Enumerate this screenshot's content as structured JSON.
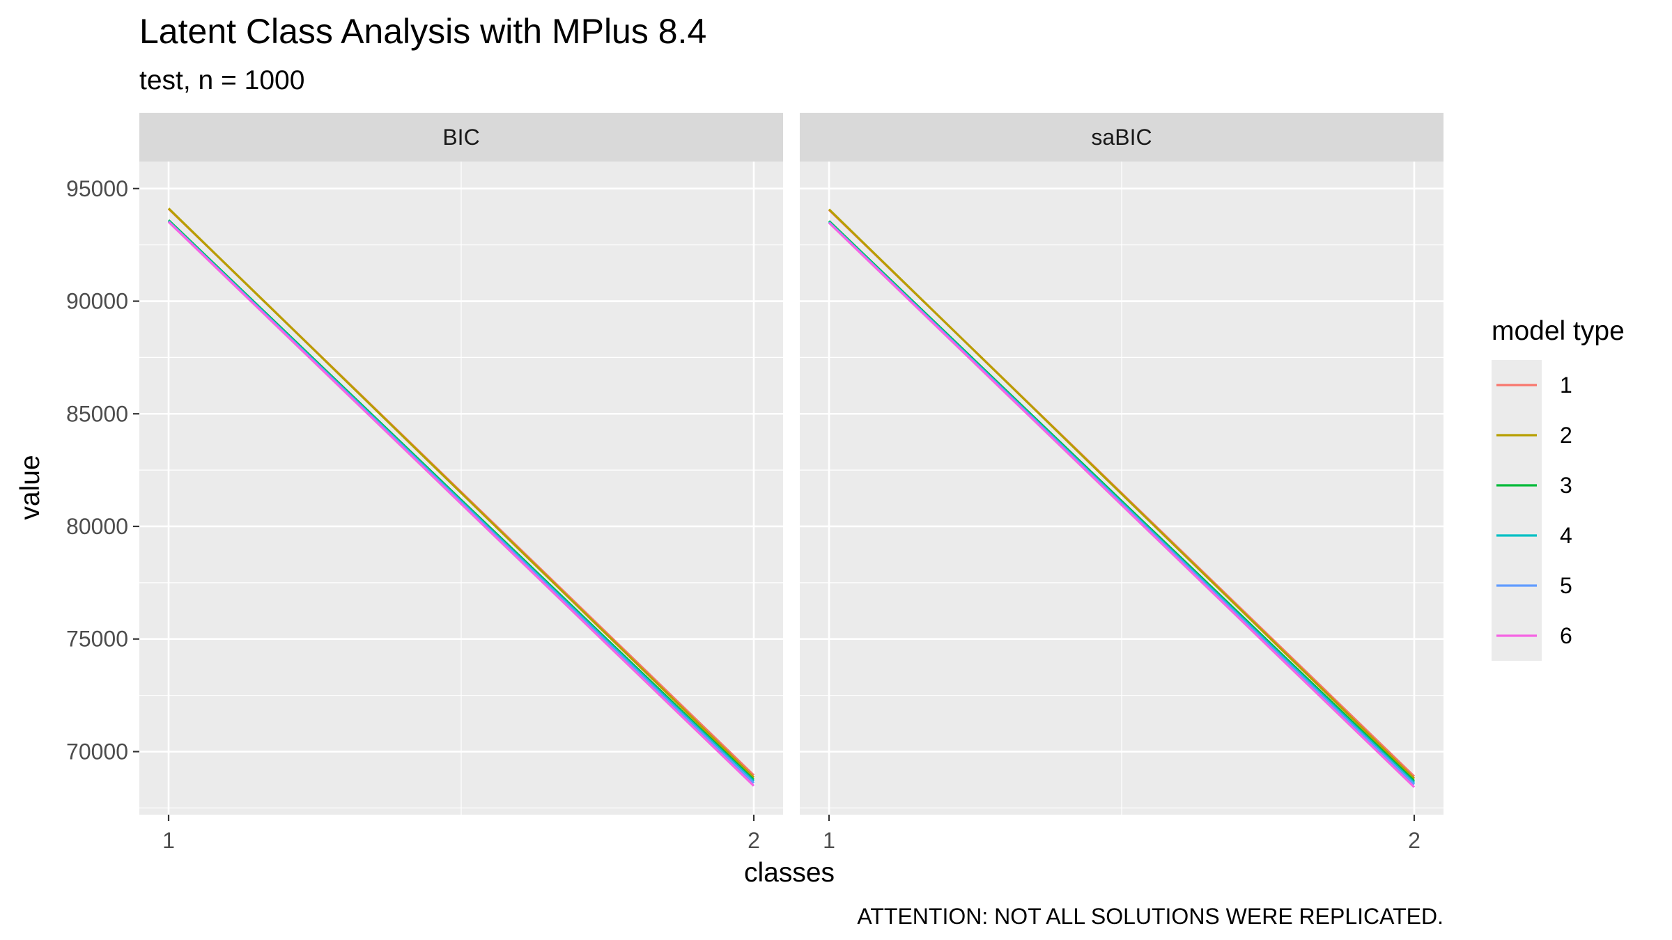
{
  "chart_data": {
    "type": "line",
    "title": "Latent Class Analysis with MPlus 8.4",
    "subtitle": "test, n = 1000",
    "caption": "ATTENTION: NOT ALL SOLUTIONS WERE REPLICATED.",
    "xlabel": "classes",
    "ylabel": "value",
    "x": [
      1,
      2
    ],
    "x_ticks": [
      "1",
      "2"
    ],
    "y_ticks": [
      "70000",
      "75000",
      "80000",
      "85000",
      "90000",
      "95000"
    ],
    "ylim": [
      67200,
      96200
    ],
    "grid": true,
    "legend": {
      "title": "model type",
      "position": "right",
      "entries": [
        "1",
        "2",
        "3",
        "4",
        "5",
        "6"
      ]
    },
    "panels": [
      {
        "name": "BIC",
        "series": [
          {
            "name": "1",
            "color": "#F8766D",
            "values": [
              94100,
              68950
            ]
          },
          {
            "name": "2",
            "color": "#B79F00",
            "values": [
              94120,
              68850
            ]
          },
          {
            "name": "3",
            "color": "#00BA38",
            "values": [
              93600,
              68750
            ]
          },
          {
            "name": "4",
            "color": "#00BFC4",
            "values": [
              93560,
              68680
            ]
          },
          {
            "name": "5",
            "color": "#619CFF",
            "values": [
              93540,
              68600
            ]
          },
          {
            "name": "6",
            "color": "#F564E3",
            "values": [
              93520,
              68480
            ]
          }
        ]
      },
      {
        "name": "saBIC",
        "series": [
          {
            "name": "1",
            "color": "#F8766D",
            "values": [
              94050,
              68900
            ]
          },
          {
            "name": "2",
            "color": "#B79F00",
            "values": [
              94080,
              68800
            ]
          },
          {
            "name": "3",
            "color": "#00BA38",
            "values": [
              93560,
              68700
            ]
          },
          {
            "name": "4",
            "color": "#00BFC4",
            "values": [
              93520,
              68620
            ]
          },
          {
            "name": "5",
            "color": "#619CFF",
            "values": [
              93500,
              68540
            ]
          },
          {
            "name": "6",
            "color": "#F564E3",
            "values": [
              93480,
              68420
            ]
          }
        ]
      }
    ]
  }
}
